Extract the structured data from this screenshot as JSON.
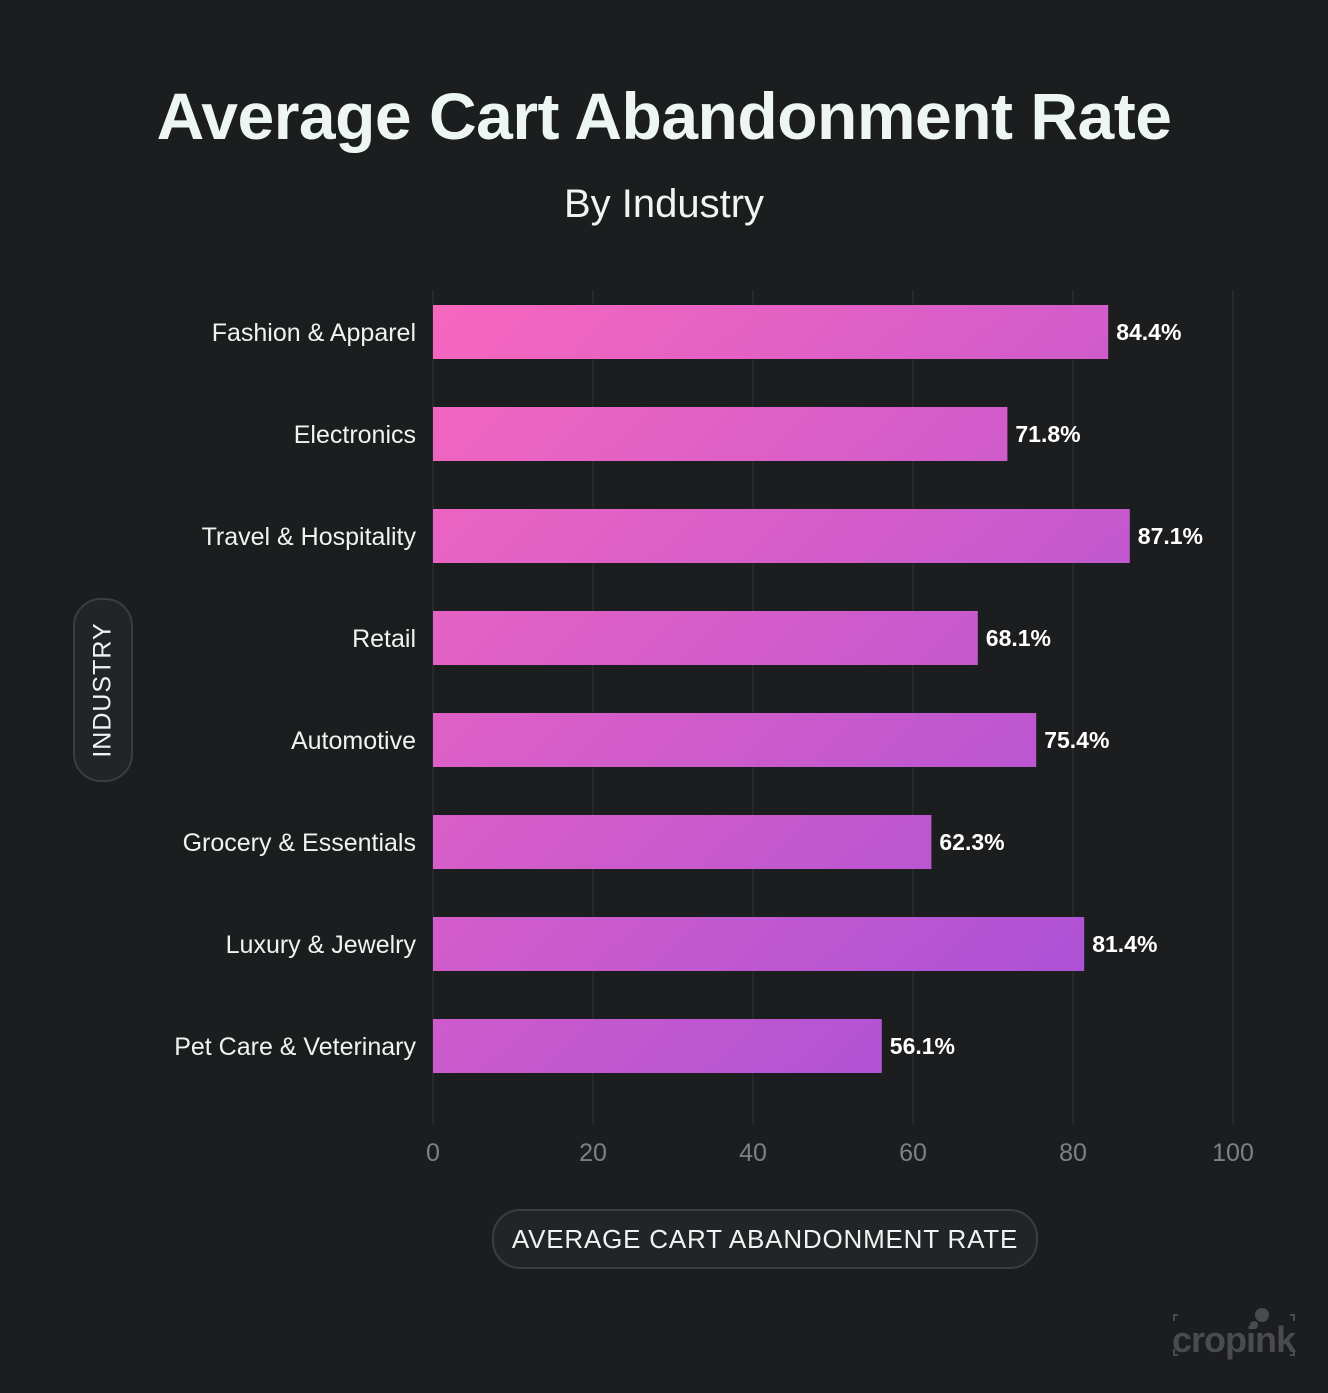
{
  "chart_data": {
    "type": "bar",
    "orientation": "horizontal",
    "title": "Average Cart Abandonment Rate",
    "subtitle": "By Industry",
    "xlabel": "AVERAGE CART ABANDONMENT RATE",
    "ylabel": "INDUSTRY",
    "categories": [
      "Fashion & Apparel",
      "Electronics",
      "Travel & Hospitality",
      "Retail",
      "Automotive",
      "Grocery & Essentials",
      "Luxury & Jewelry",
      "Pet Care & Veterinary"
    ],
    "values": [
      84.4,
      71.8,
      87.1,
      68.1,
      75.4,
      62.3,
      81.4,
      56.1
    ],
    "data_labels": [
      "84.4%",
      "71.8%",
      "87.1%",
      "68.1%",
      "75.4%",
      "62.3%",
      "81.4%",
      "56.1%"
    ],
    "xlim": [
      0,
      100
    ],
    "xticks": [
      "0",
      "20",
      "40",
      "60",
      "80",
      "100"
    ],
    "grid": "vertical",
    "colors": {
      "gradient_start": "#f767be",
      "gradient_end": "#a34fd9",
      "background": "#1c1d1f"
    }
  },
  "watermark": "cropink"
}
